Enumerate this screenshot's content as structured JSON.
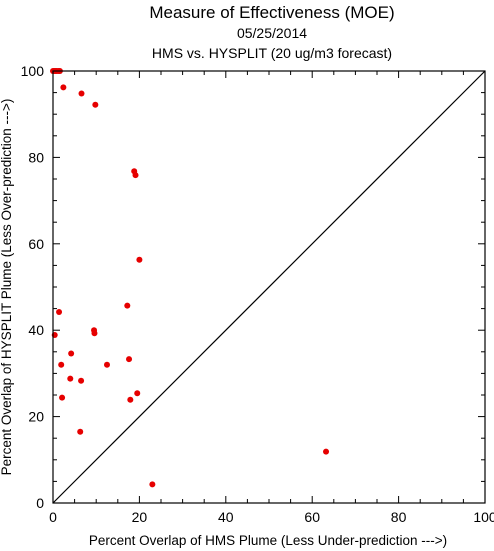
{
  "chart_data": {
    "type": "scatter",
    "title": "Measure of Effectiveness (MOE)",
    "subtitle_date": "05/25/2014",
    "subtitle_desc": "HMS vs. HYSPLIT  (20 ug/m3 forecast)",
    "xlabel": "Percent Overlap of HMS Plume (Less Under-prediction --->)",
    "ylabel": "Percent Overlap of HYSPLIT Plume (Less Over-prediction --->)",
    "xlim": [
      0,
      100
    ],
    "ylim": [
      0,
      100
    ],
    "x_ticks": [
      "0",
      "20",
      "40",
      "60",
      "80",
      "100"
    ],
    "y_ticks": [
      "0",
      "20",
      "40",
      "60",
      "80",
      "100"
    ],
    "diagonal_line": true,
    "point_color": "#e60000",
    "points": [
      {
        "x": 0.0,
        "y": 100.0
      },
      {
        "x": 0.3,
        "y": 100.0
      },
      {
        "x": 0.6,
        "y": 100.0
      },
      {
        "x": 0.9,
        "y": 100.0
      },
      {
        "x": 1.3,
        "y": 100.0
      },
      {
        "x": 1.6,
        "y": 100.0
      },
      {
        "x": 2.4,
        "y": 96.2
      },
      {
        "x": 6.6,
        "y": 94.8
      },
      {
        "x": 9.8,
        "y": 92.2
      },
      {
        "x": 18.8,
        "y": 76.8
      },
      {
        "x": 19.1,
        "y": 75.9
      },
      {
        "x": 20.0,
        "y": 56.3
      },
      {
        "x": 17.2,
        "y": 45.7
      },
      {
        "x": 1.4,
        "y": 44.2
      },
      {
        "x": 9.5,
        "y": 40.0
      },
      {
        "x": 9.6,
        "y": 39.3
      },
      {
        "x": 0.4,
        "y": 38.9
      },
      {
        "x": 4.2,
        "y": 34.6
      },
      {
        "x": 17.6,
        "y": 33.3
      },
      {
        "x": 1.9,
        "y": 32.0
      },
      {
        "x": 12.5,
        "y": 32.0
      },
      {
        "x": 4.0,
        "y": 28.8
      },
      {
        "x": 6.5,
        "y": 28.3
      },
      {
        "x": 19.5,
        "y": 25.4
      },
      {
        "x": 2.1,
        "y": 24.4
      },
      {
        "x": 17.9,
        "y": 23.9
      },
      {
        "x": 6.3,
        "y": 16.5
      },
      {
        "x": 63.2,
        "y": 11.9
      },
      {
        "x": 23.0,
        "y": 4.3
      }
    ]
  }
}
